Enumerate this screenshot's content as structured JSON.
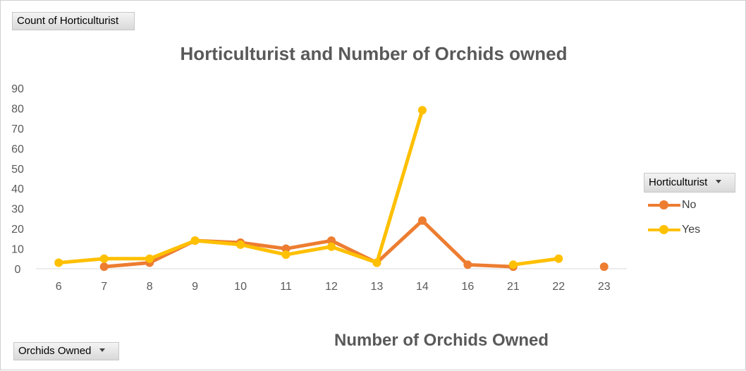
{
  "pivot": {
    "value_field_label": "Count of Horticulturist",
    "legend_field_label": "Horticulturist",
    "axis_field_label": "Orchids Owned"
  },
  "chart_data": {
    "type": "line",
    "title": "Horticulturist and Number of Orchids owned",
    "xlabel": "Number of Orchids Owned",
    "ylabel": "",
    "categories": [
      "6",
      "7",
      "8",
      "9",
      "10",
      "11",
      "12",
      "13",
      "14",
      "16",
      "21",
      "22",
      "23"
    ],
    "y_ticks": [
      0,
      10,
      20,
      30,
      40,
      50,
      60,
      70,
      80,
      90
    ],
    "ylim": [
      0,
      90
    ],
    "grid": false,
    "legend_position": "right",
    "series": [
      {
        "name": "No",
        "color": "#ed7d31",
        "values": [
          null,
          1,
          3,
          14,
          13,
          10,
          14,
          3,
          24,
          2,
          1,
          null,
          1
        ]
      },
      {
        "name": "Yes",
        "color": "#ffc000",
        "values": [
          3,
          5,
          5,
          14,
          12,
          7,
          11,
          3,
          79,
          null,
          2,
          5,
          null
        ]
      }
    ]
  }
}
